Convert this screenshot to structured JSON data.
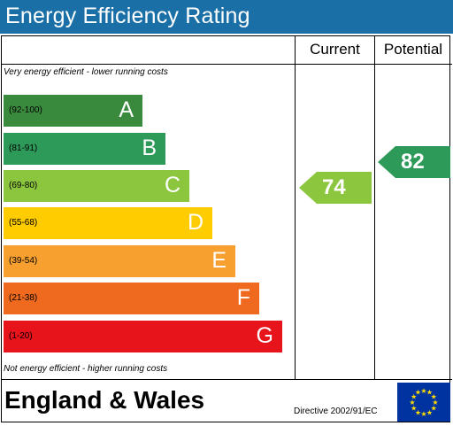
{
  "title": "Energy Efficiency Rating",
  "columns": {
    "current": "Current",
    "potential": "Potential"
  },
  "notes": {
    "top": "Very energy efficient - lower running costs",
    "bottom": "Not energy efficient - higher running costs"
  },
  "bands": [
    {
      "range": "(92-100)",
      "letter": "A",
      "color": "#3a8a3e"
    },
    {
      "range": "(81-91)",
      "letter": "B",
      "color": "#2e9a5a"
    },
    {
      "range": "(69-80)",
      "letter": "C",
      "color": "#8cc63f"
    },
    {
      "range": "(55-68)",
      "letter": "D",
      "color": "#ffcc00"
    },
    {
      "range": "(39-54)",
      "letter": "E",
      "color": "#f7a030"
    },
    {
      "range": "(21-38)",
      "letter": "F",
      "color": "#ef6a1f"
    },
    {
      "range": "(1-20)",
      "letter": "G",
      "color": "#e8141b"
    }
  ],
  "current": {
    "value": "74",
    "color": "#8cc63f"
  },
  "potential": {
    "value": "82",
    "color": "#2e9a5a"
  },
  "footer": {
    "region": "England & Wales",
    "directive": "Directive 2002/91/EC",
    "flag_icon": "eu-flag-icon"
  },
  "colors": {
    "title_bar": "#1a6fa6"
  }
}
